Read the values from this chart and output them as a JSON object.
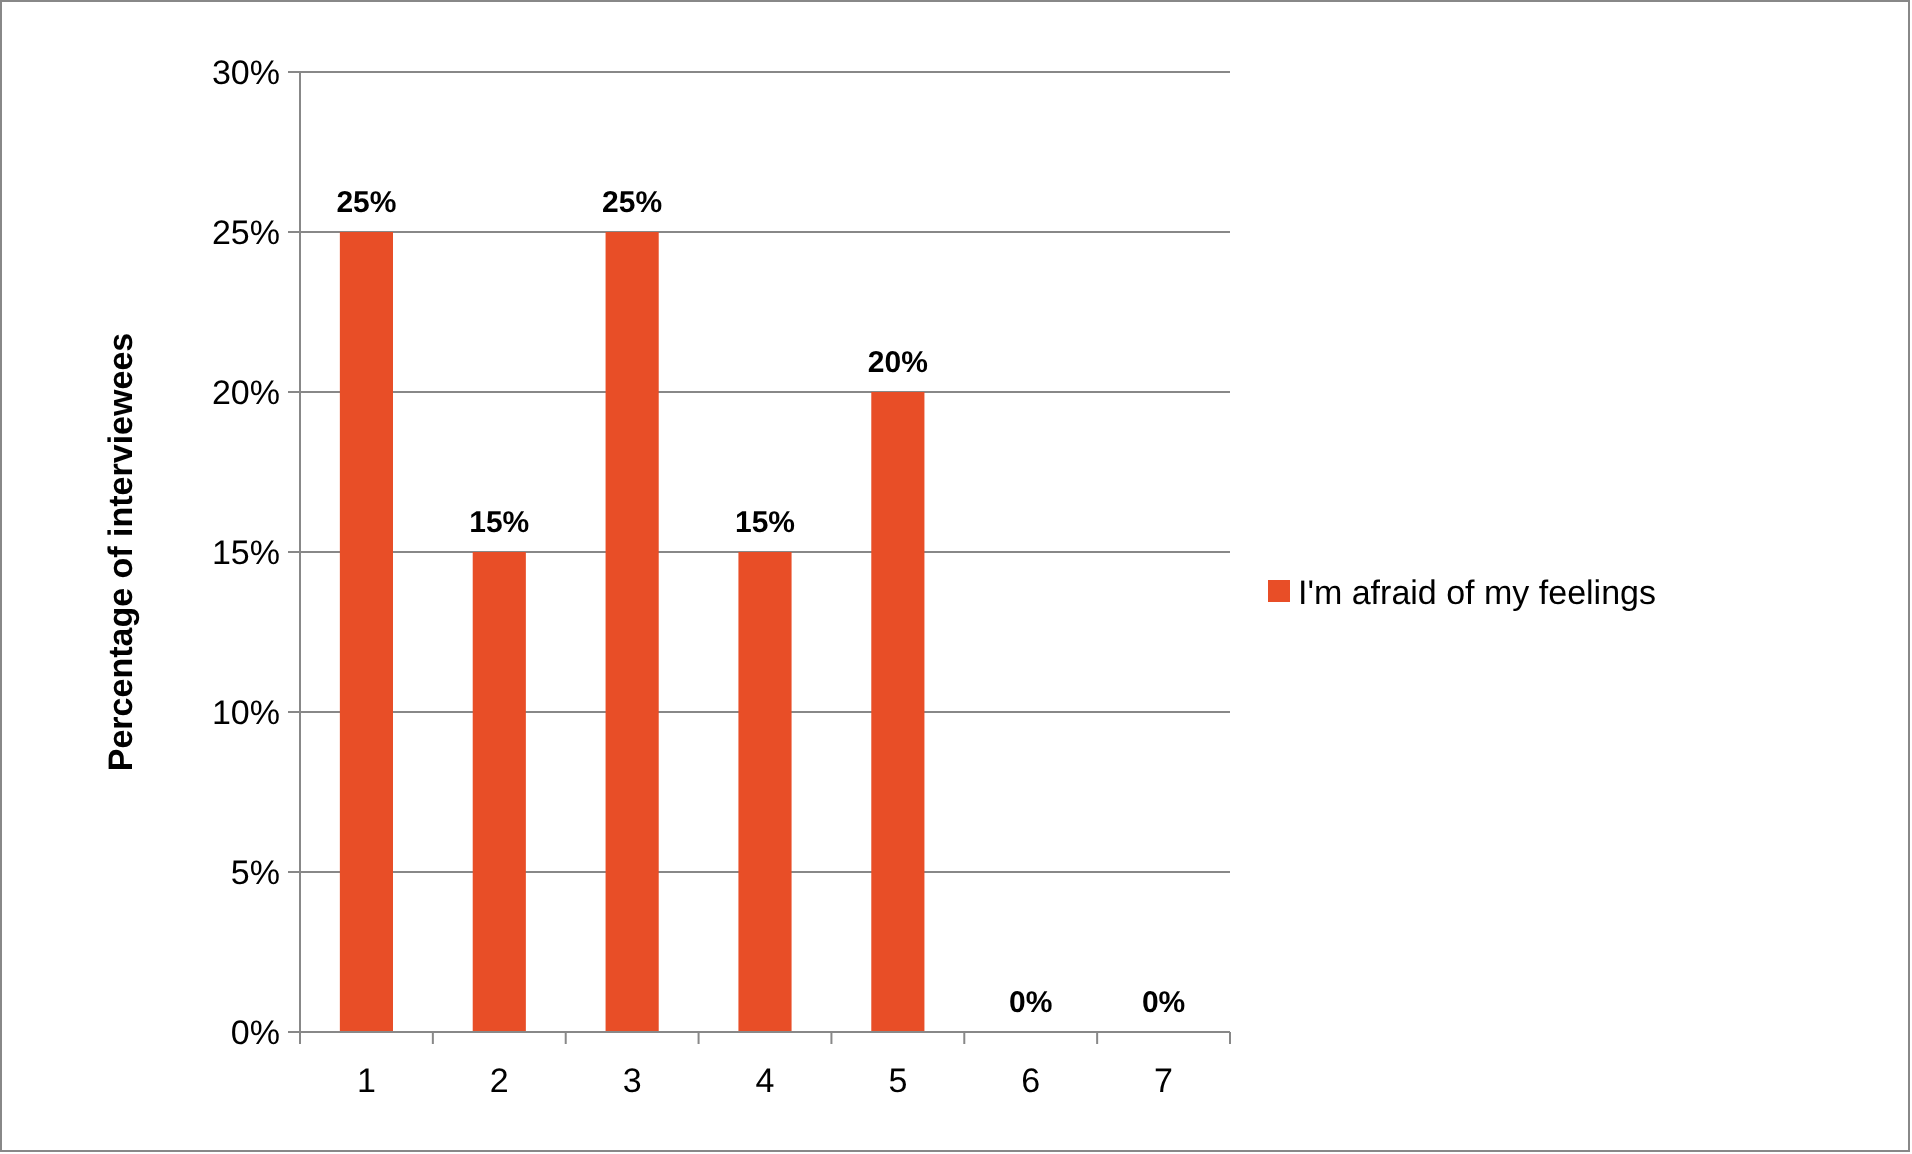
{
  "chart_data": {
    "type": "bar",
    "ylabel": "Percentage of interviewees",
    "categories": [
      "1",
      "2",
      "3",
      "4",
      "5",
      "6",
      "7"
    ],
    "series": [
      {
        "name": "I'm afraid of my feelings",
        "color": "#e84e27",
        "values": [
          25,
          15,
          25,
          15,
          20,
          0,
          0
        ],
        "value_labels": [
          "25%",
          "15%",
          "25%",
          "15%",
          "20%",
          "0%",
          "0%"
        ]
      }
    ],
    "ylim": [
      0,
      30
    ],
    "yticks": [
      {
        "value": 0,
        "label": "0%"
      },
      {
        "value": 5,
        "label": "5%"
      },
      {
        "value": 10,
        "label": "10%"
      },
      {
        "value": 15,
        "label": "15%"
      },
      {
        "value": 20,
        "label": "20%"
      },
      {
        "value": 25,
        "label": "25%"
      },
      {
        "value": 30,
        "label": "30%"
      }
    ],
    "grid": "y",
    "legend": "right"
  }
}
